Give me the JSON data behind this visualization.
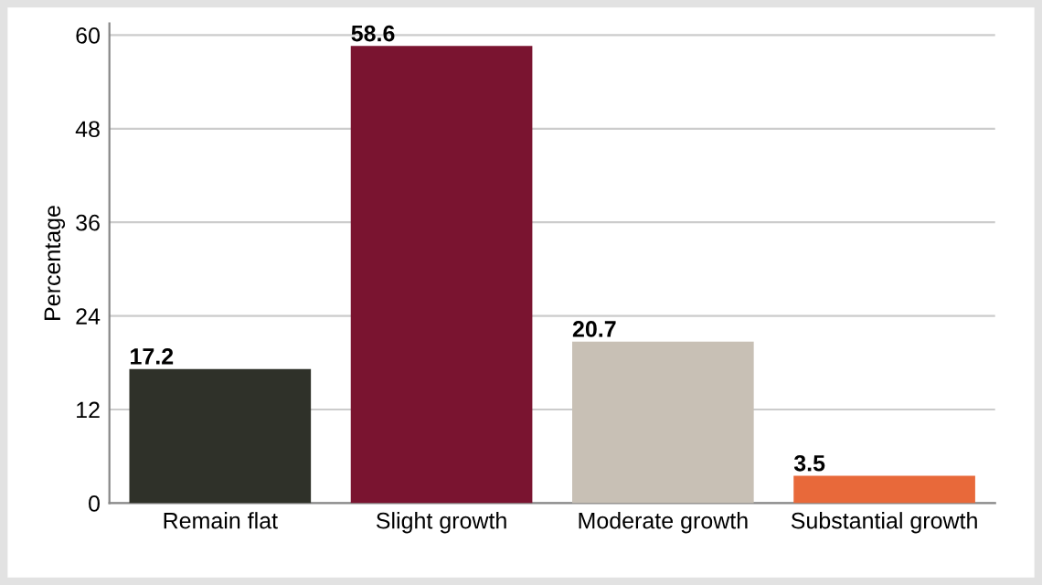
{
  "chart_data": {
    "type": "bar",
    "ylabel": "Percentage",
    "categories": [
      "Remain flat",
      "Slight growth",
      "Moderate growth",
      "Substantial growth"
    ],
    "values": [
      17.2,
      58.6,
      20.7,
      3.5
    ],
    "colors": [
      "#2f3129",
      "#7a1430",
      "#c8c0b5",
      "#e8693a"
    ],
    "ylim": [
      0,
      61.5
    ],
    "yticks": [
      0,
      12,
      24,
      36,
      48,
      60
    ],
    "grid": "y",
    "data_labels": true
  }
}
